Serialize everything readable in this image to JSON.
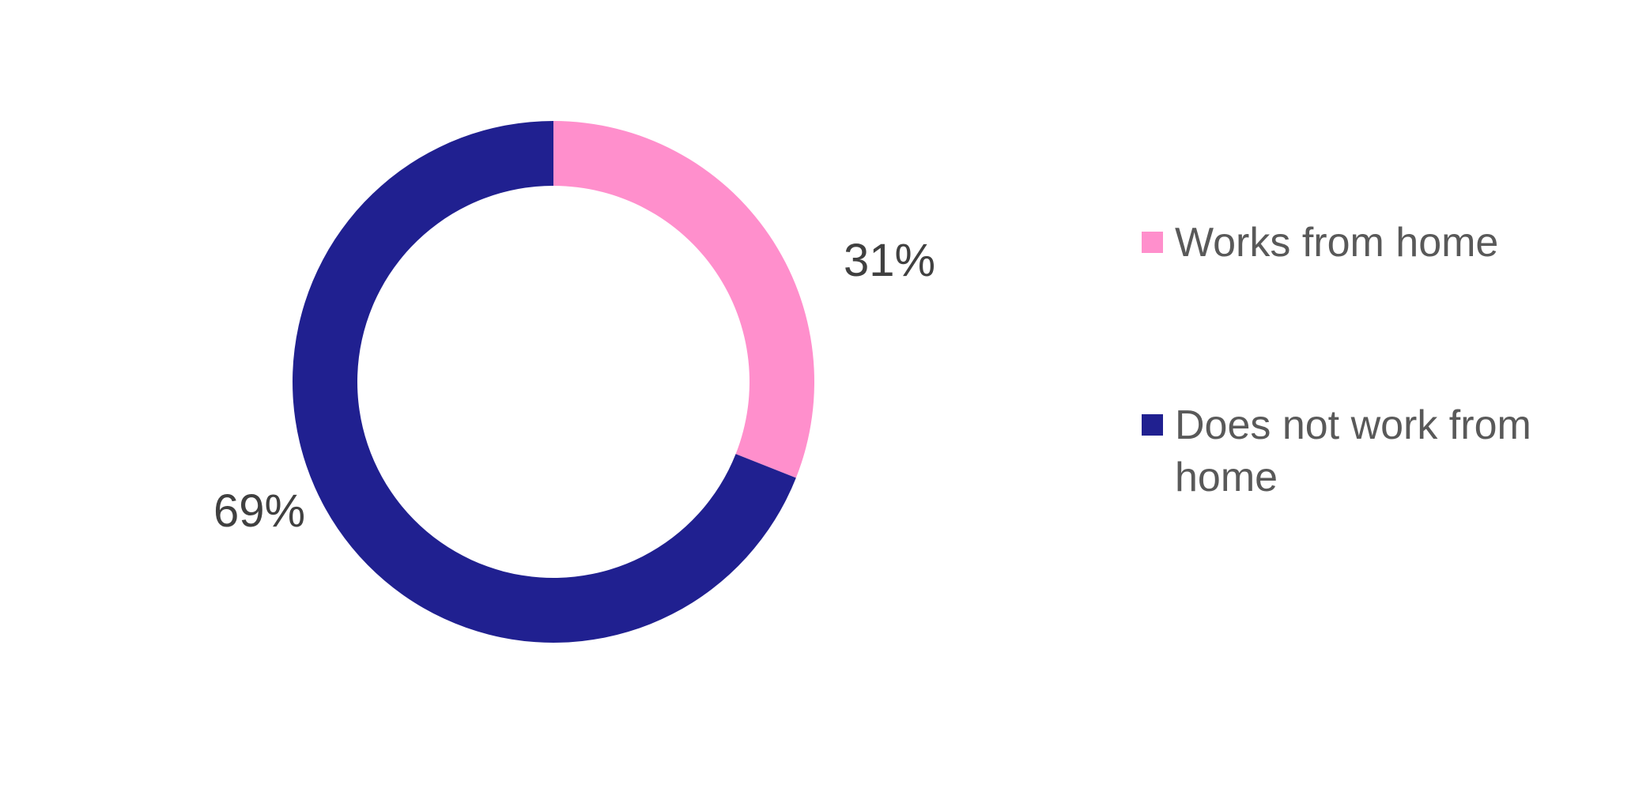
{
  "chart_data": {
    "type": "pie",
    "variant": "donut",
    "title": "",
    "slices": [
      {
        "label": "Works from home",
        "value": 31,
        "display": "31%",
        "color": "#FF8FCC"
      },
      {
        "label": "Does not work from home",
        "value": 69,
        "display": "69%",
        "color": "#202090"
      }
    ],
    "legend": {
      "position": "right",
      "lines": [
        [
          "Works from home"
        ],
        [
          "Does not work from",
          "home"
        ]
      ]
    }
  }
}
